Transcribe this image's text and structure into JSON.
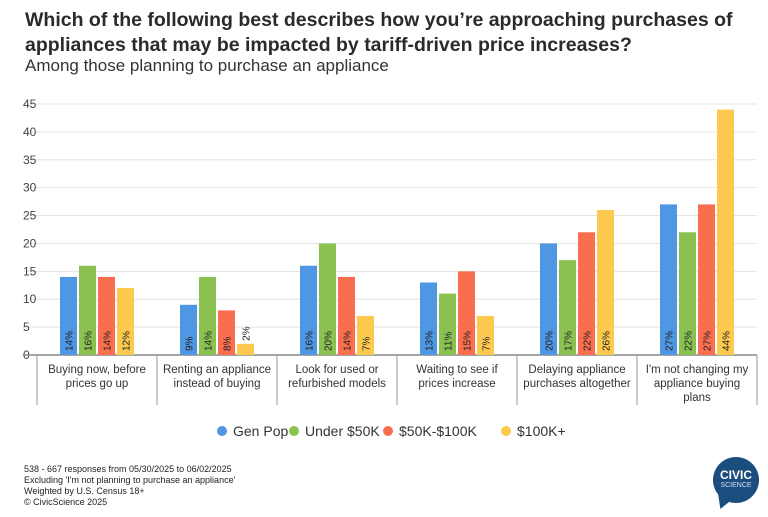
{
  "chart_data": {
    "type": "bar",
    "title": "Which of the following best describes how you’re approaching purchases of appliances that may be impacted by tariff-driven price increases?",
    "subtitle": "Among those planning to purchase an appliance",
    "categories": [
      [
        "Buying now, before",
        "prices go up"
      ],
      [
        "Renting an appliance",
        "instead of buying"
      ],
      [
        "Look for used or",
        "refurbished models"
      ],
      [
        "Waiting to see if",
        "prices increase"
      ],
      [
        "Delaying appliance",
        "purchases altogether"
      ],
      [
        "I'm not changing my",
        "appliance buying",
        "plans"
      ]
    ],
    "series": [
      {
        "name": "Gen Pop",
        "color": "#4f96e3",
        "values": [
          14,
          9,
          16,
          13,
          20,
          27
        ]
      },
      {
        "name": "Under $50K",
        "color": "#8bc151",
        "values": [
          16,
          14,
          20,
          11,
          17,
          22
        ]
      },
      {
        "name": "$50K-$100K",
        "color": "#f96e4f",
        "values": [
          14,
          8,
          14,
          15,
          22,
          27
        ]
      },
      {
        "name": "$100K+",
        "color": "#fdca4f",
        "values": [
          12,
          2,
          7,
          7,
          26,
          44
        ]
      }
    ],
    "value_suffix": "%",
    "ylim": [
      0,
      45
    ],
    "yticks": [
      0,
      5,
      10,
      15,
      20,
      25,
      30,
      35,
      40,
      45
    ],
    "grid": true,
    "legend_position": "bottom"
  },
  "footer": {
    "lines": [
      "538 - 667 responses from 05/30/2025 to 06/02/2025",
      "Excluding 'I'm not planning to purchase an appliance'",
      "Weighted by U.S. Census 18+",
      "© CivicScience 2025"
    ]
  },
  "logo": {
    "line1": "CIVIC",
    "line2": "SCIENCE",
    "color": "#1b4e7e"
  }
}
